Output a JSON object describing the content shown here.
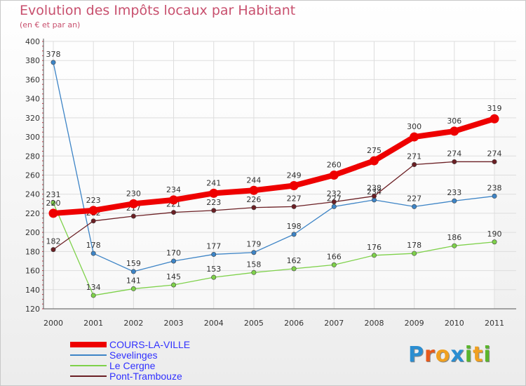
{
  "header": {
    "title": "Evolution des Impôts locaux par Habitant",
    "subtitle": "(en € et par an)"
  },
  "logo": {
    "letters": [
      "P",
      "r",
      "o",
      "x",
      "i",
      "t",
      "i"
    ],
    "colors": [
      "#2b8ed1",
      "#e85a1c",
      "#f0a020",
      "#2b8ed1",
      "#5ab52c",
      "#f0a020",
      "#5ab52c"
    ]
  },
  "chart_data": {
    "type": "line",
    "title": "Evolution des Impôts locaux par Habitant",
    "subtitle": "(en € et par an)",
    "xlabel": "",
    "ylabel": "",
    "x": [
      "2000",
      "2001",
      "2002",
      "2003",
      "2004",
      "2005",
      "2006",
      "2007",
      "2008",
      "2009",
      "2010",
      "2011"
    ],
    "ylim": [
      120,
      400
    ],
    "yticks": [
      120,
      140,
      160,
      180,
      200,
      220,
      240,
      260,
      280,
      300,
      320,
      340,
      360,
      380,
      400
    ],
    "grid": true,
    "legend": "bottom-left",
    "series": [
      {
        "name": "COURS-LA-VILLE",
        "color": "#ee0000",
        "values": [
          220,
          223,
          230,
          234,
          241,
          244,
          249,
          260,
          275,
          300,
          306,
          319
        ],
        "emphasis": true
      },
      {
        "name": "Sevelinges",
        "color": "#3d84c6",
        "values": [
          378,
          178,
          159,
          170,
          177,
          179,
          198,
          227,
          234,
          227,
          233,
          238
        ]
      },
      {
        "name": "Le Cergne",
        "color": "#7ed14a",
        "values": [
          231,
          134,
          141,
          145,
          153,
          158,
          162,
          166,
          176,
          178,
          186,
          190
        ]
      },
      {
        "name": "Pont-Trambouze",
        "color": "#6b1f24",
        "values": [
          182,
          212,
          217,
          221,
          223,
          226,
          227,
          232,
          238,
          271,
          274,
          274
        ]
      }
    ]
  }
}
